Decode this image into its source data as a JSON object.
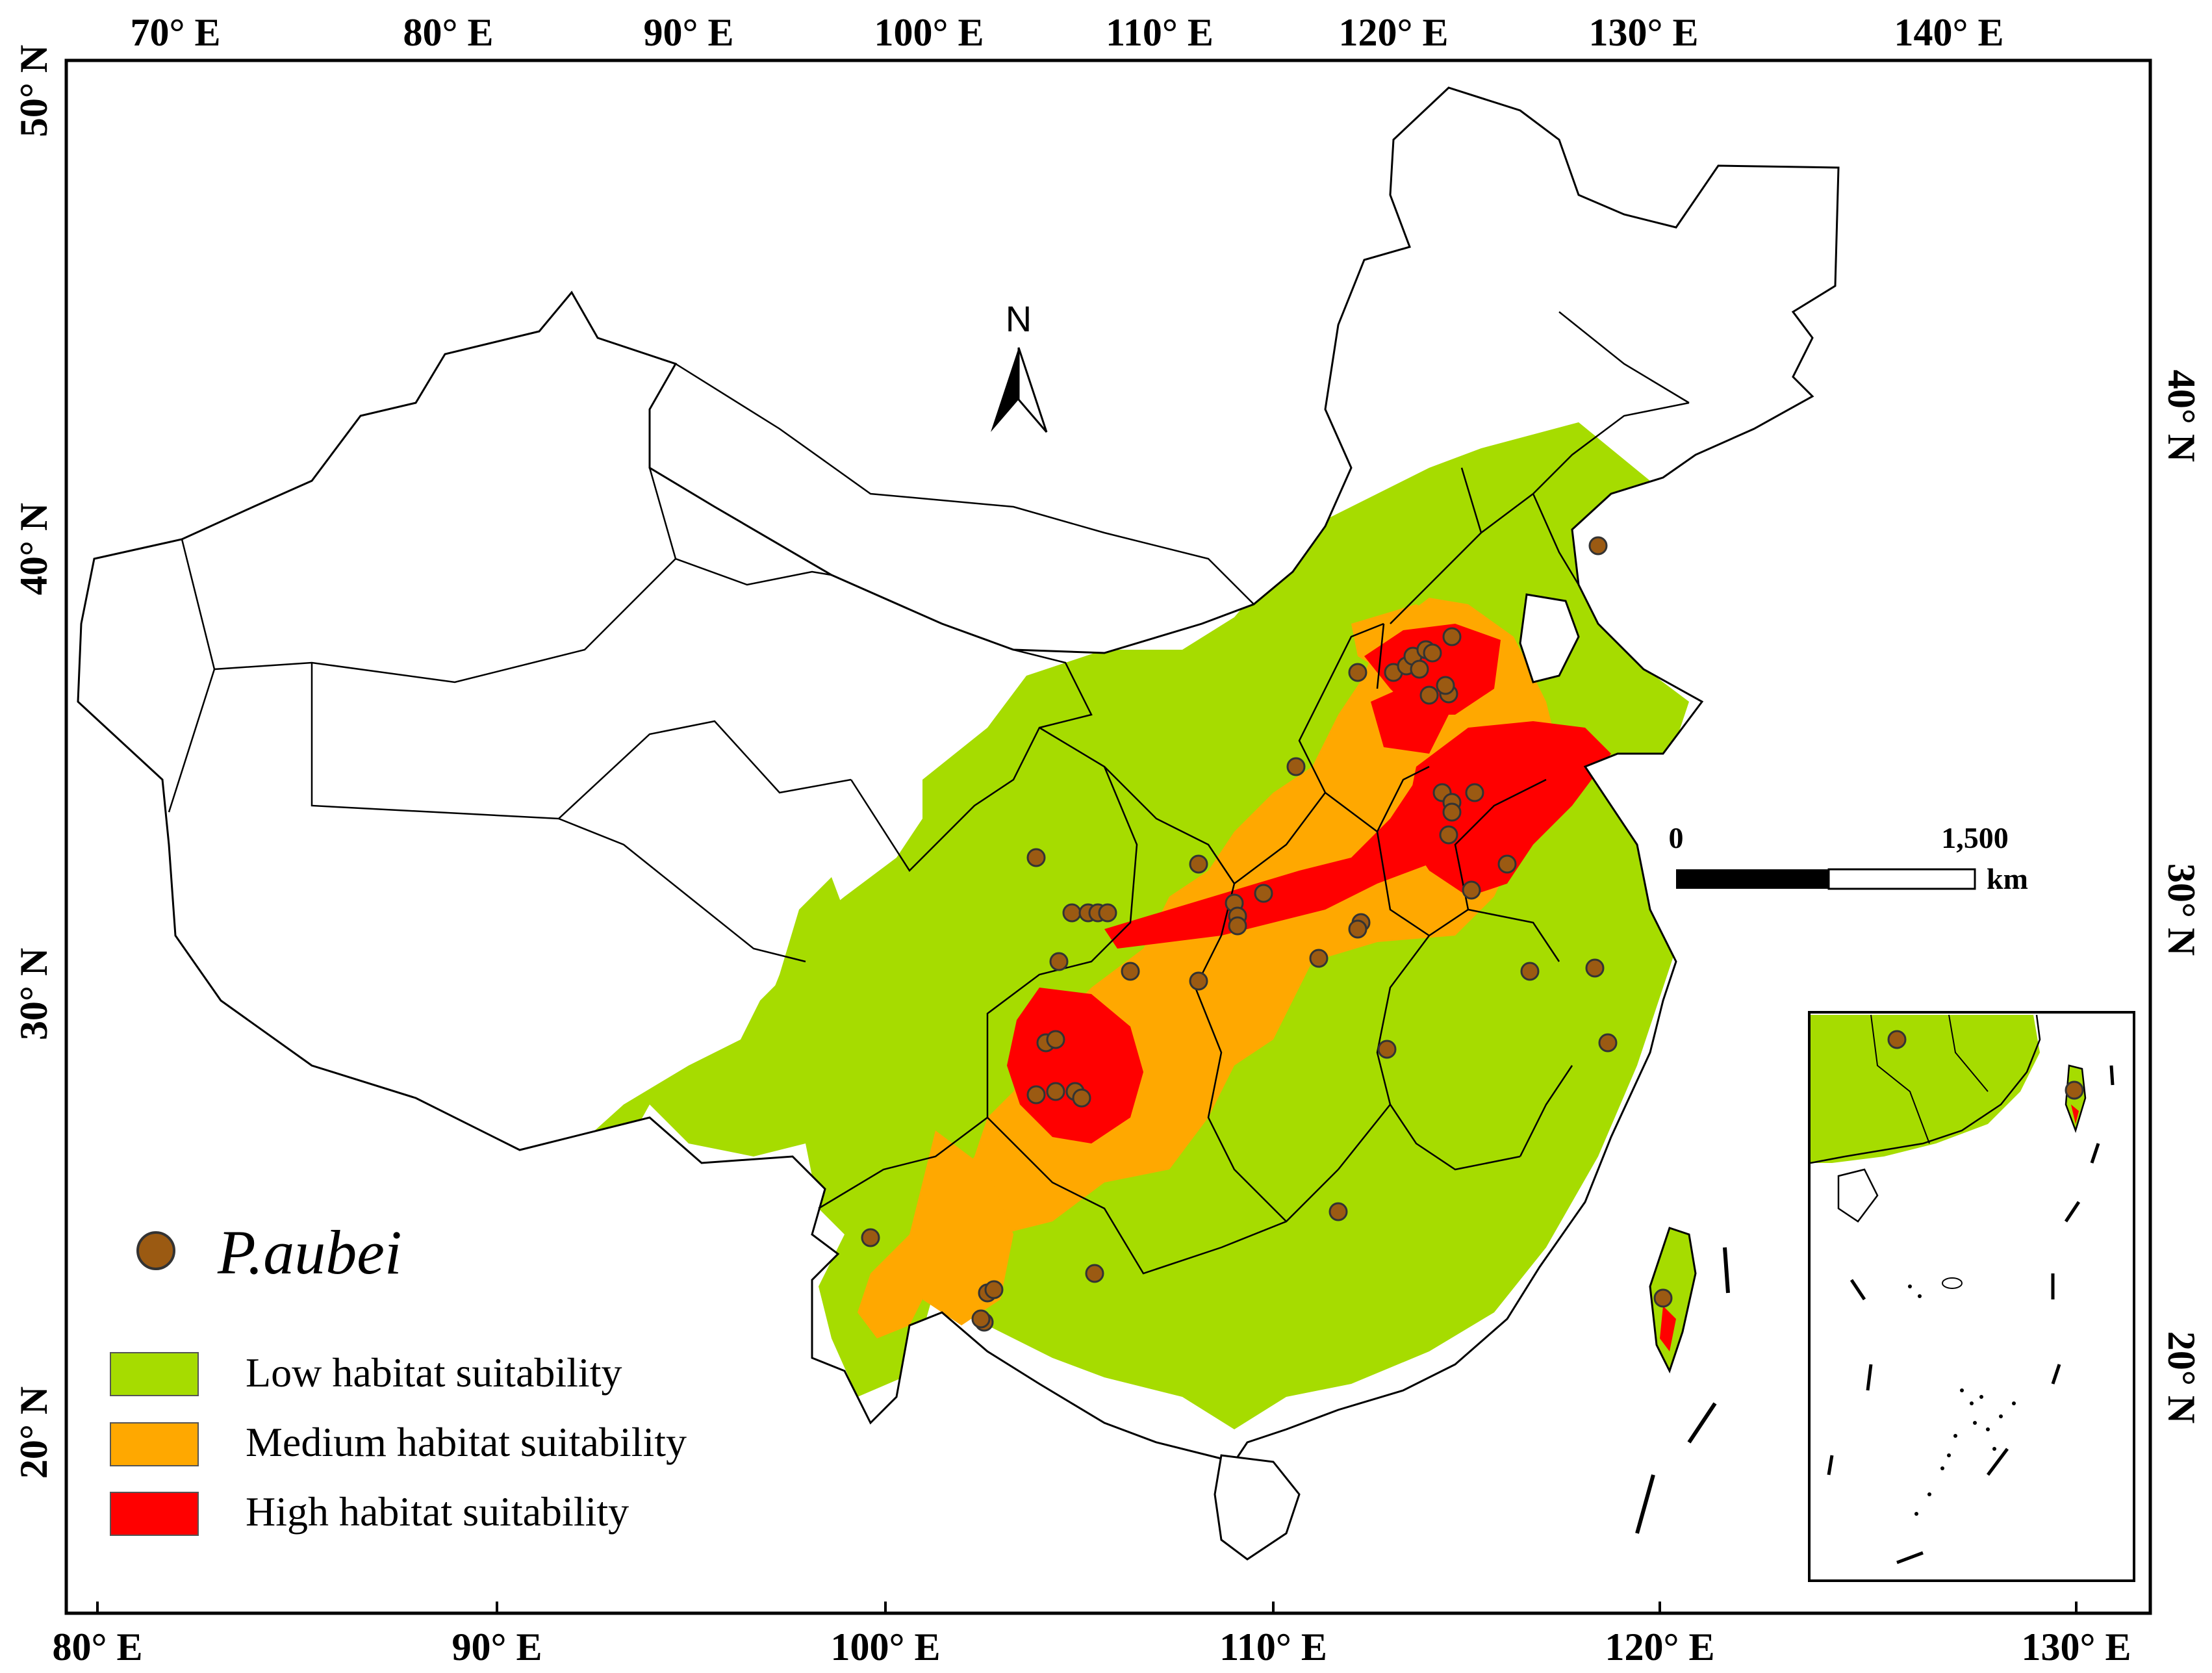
{
  "map": {
    "top_longitude_labels": [
      "70° E",
      "80° E",
      "90° E",
      "100° E",
      "110° E",
      "120° E",
      "130° E",
      "140° E"
    ],
    "bottom_longitude_labels": [
      "80° E",
      "90° E",
      "100° E",
      "110° E",
      "120° E",
      "130° E"
    ],
    "left_latitude_labels": [
      "50° N",
      "40° N",
      "30° N",
      "20° N"
    ],
    "right_latitude_labels": [
      "40° N",
      "30° N",
      "20° N"
    ],
    "north_arrow_label": "N",
    "scale_bar": {
      "start_label": "0",
      "end_label": "1,500",
      "unit": "km"
    },
    "occurrence_count": 62
  },
  "legend": {
    "species_label": "P.aubei",
    "species_marker_color": "#9b5a12",
    "classes": [
      {
        "label": "Low habitat suitability",
        "color": "#a6dc00"
      },
      {
        "label": "Medium habitat suitability",
        "color": "#ffa800"
      },
      {
        "label": "High habitat suitability",
        "color": "#ff0000"
      }
    ]
  }
}
